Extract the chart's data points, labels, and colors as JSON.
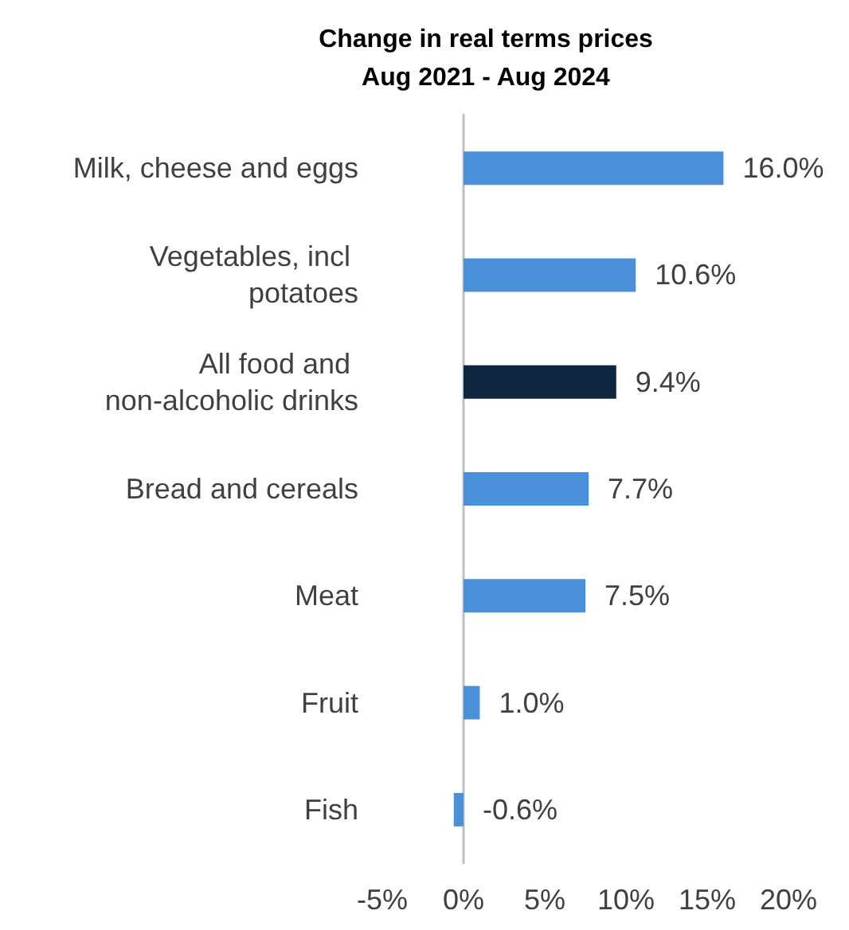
{
  "chart_data": {
    "type": "bar",
    "orientation": "horizontal",
    "title": "Change in real terms prices\nAug 2021 - Aug 2024",
    "categories": [
      "Milk, cheese and eggs",
      "Vegetables, incl potatoes",
      "All food and non-alcoholic drinks",
      "Bread and cereals",
      "Meat",
      "Fruit",
      "Fish"
    ],
    "values": [
      16.0,
      10.6,
      9.4,
      7.7,
      7.5,
      1.0,
      -0.6
    ],
    "colors": [
      "#4a90d9",
      "#4a90d9",
      "#0f2640",
      "#4a90d9",
      "#4a90d9",
      "#4a90d9",
      "#4a90d9"
    ],
    "value_labels": [
      "16.0%",
      "10.6%",
      "9.4%",
      "7.7%",
      "7.5%",
      "1.0%",
      "-0.6%"
    ],
    "xlim": [
      -5,
      20
    ],
    "xticks": [
      {
        "value": -5,
        "label": "-5%"
      },
      {
        "value": 0,
        "label": "0%"
      },
      {
        "value": 5,
        "label": "5%"
      },
      {
        "value": 10,
        "label": "10%"
      },
      {
        "value": 15,
        "label": "15%"
      },
      {
        "value": 20,
        "label": "20%"
      }
    ]
  }
}
